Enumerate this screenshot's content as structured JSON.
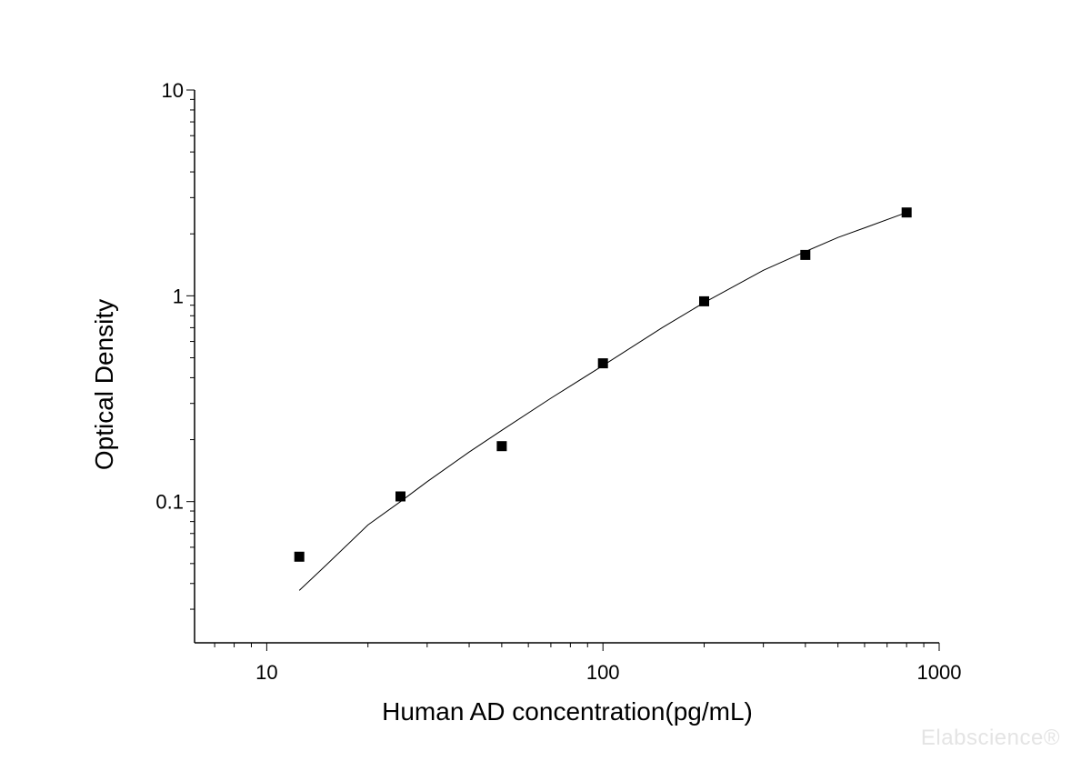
{
  "chart_data": {
    "type": "scatter",
    "xlabel": "Human AD concentration(pg/mL)",
    "ylabel": "Optical Density",
    "xscale": "log",
    "yscale": "log",
    "xlim": [
      6.1,
      1000
    ],
    "ylim": [
      0.0206,
      10
    ],
    "x_ticks": [
      10,
      100,
      1000
    ],
    "x_tick_labels": [
      "10",
      "100",
      "1000"
    ],
    "y_ticks": [
      0.1,
      1,
      10
    ],
    "y_tick_labels": [
      "0.1",
      "1",
      "10"
    ],
    "grid": false,
    "legend": "none",
    "series": [
      {
        "marker": "square",
        "color": "#000000",
        "x": [
          12.5,
          25,
          50,
          100,
          200,
          400,
          800
        ],
        "y": [
          0.054,
          0.106,
          0.186,
          0.47,
          0.94,
          1.58,
          2.54
        ]
      }
    ],
    "fit_curve": {
      "color": "#000000",
      "points": [
        [
          12.5,
          0.037
        ],
        [
          15,
          0.049
        ],
        [
          20,
          0.077
        ],
        [
          25,
          0.1
        ],
        [
          30,
          0.125
        ],
        [
          40,
          0.174
        ],
        [
          50,
          0.222
        ],
        [
          70,
          0.318
        ],
        [
          100,
          0.458
        ],
        [
          150,
          0.7
        ],
        [
          200,
          0.927
        ],
        [
          300,
          1.33
        ],
        [
          400,
          1.64
        ],
        [
          500,
          1.92
        ],
        [
          600,
          2.14
        ],
        [
          800,
          2.54
        ]
      ]
    }
  },
  "watermark": "Elabscience®"
}
